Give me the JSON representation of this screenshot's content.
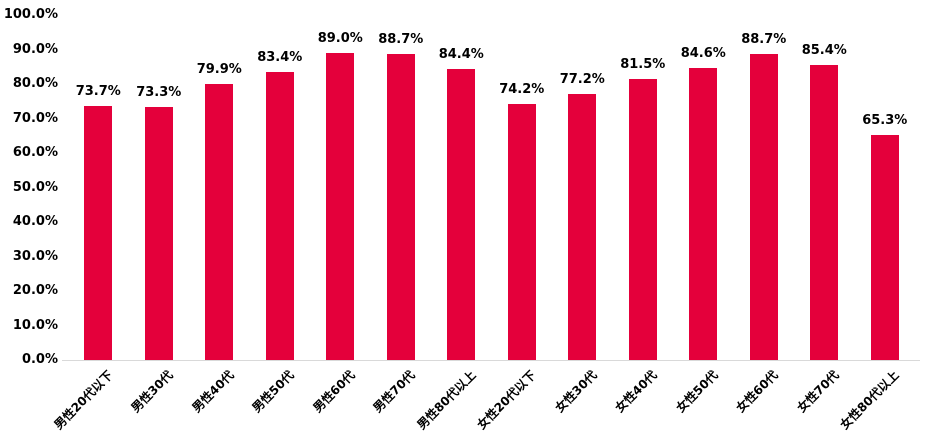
{
  "chart_data": {
    "type": "bar",
    "title": "",
    "xlabel": "",
    "ylabel": "",
    "categories": [
      "男性20代以下",
      "男性30代",
      "男性40代",
      "男性50代",
      "男性60代",
      "男性70代",
      "男性80代以上",
      "女性20代以下",
      "女性30代",
      "女性40代",
      "女性50代",
      "女性60代",
      "女性70代",
      "女性80代以上"
    ],
    "values": [
      73.7,
      73.3,
      79.9,
      83.4,
      89.0,
      88.7,
      84.4,
      74.2,
      77.2,
      81.5,
      84.6,
      88.7,
      85.4,
      65.3
    ],
    "data_labels": [
      "73.7%",
      "73.3%",
      "79.9%",
      "83.4%",
      "89.0%",
      "88.7%",
      "84.4%",
      "74.2%",
      "77.2%",
      "81.5%",
      "84.6%",
      "88.7%",
      "85.4%",
      "65.3%"
    ],
    "y_ticks": [
      "0.0%",
      "10.0%",
      "20.0%",
      "30.0%",
      "40.0%",
      "50.0%",
      "60.0%",
      "70.0%",
      "80.0%",
      "90.0%",
      "100.0%"
    ],
    "ylim": [
      0,
      100
    ],
    "grid": false,
    "legend": null,
    "colors": {
      "bar": "#e4003b",
      "axis_line": "#d9d9d9",
      "text": "#000000",
      "background": "#ffffff"
    }
  }
}
